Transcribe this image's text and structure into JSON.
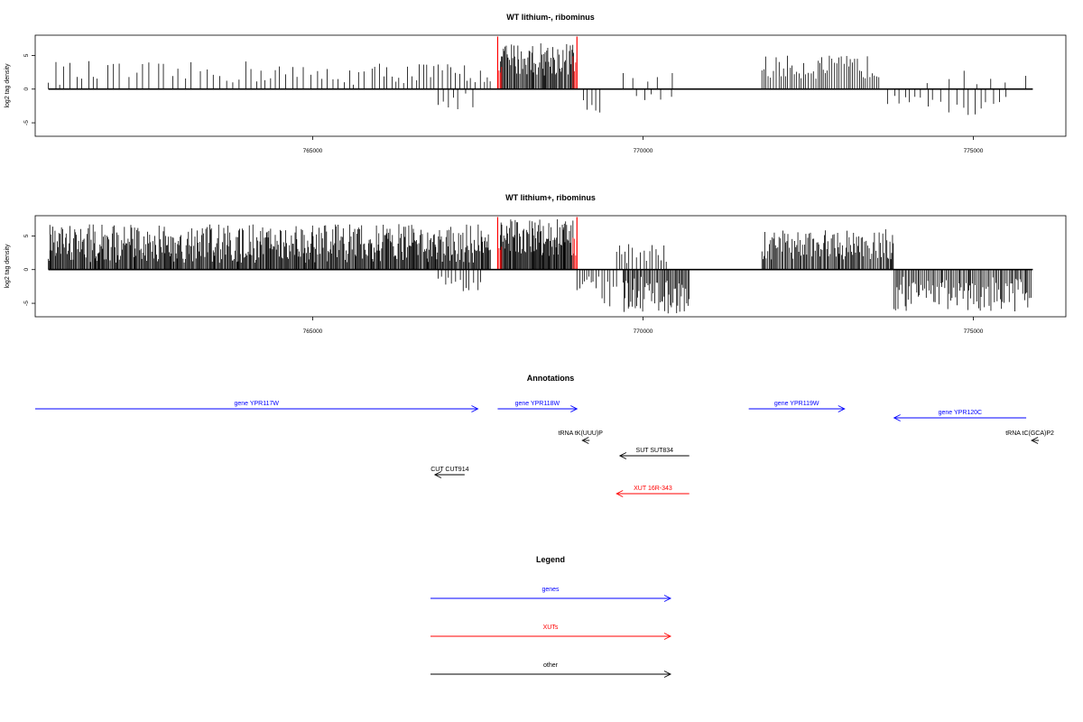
{
  "chart_data": [
    {
      "type": "bar",
      "title": "WT lithium-, ribominus",
      "ylabel": "log2 tag density",
      "xlim": [
        760800,
        776400
      ],
      "ylim": [
        -7,
        8
      ],
      "x_ticks": [
        765000,
        770000,
        775000
      ],
      "y_ticks": [
        -5,
        0,
        5
      ],
      "grid": false,
      "colors": {
        "bars": "#000000",
        "highlight": "#ff0000"
      },
      "highlight_x": [
        767800,
        769000
      ],
      "segments": [
        {
          "from": 761000,
          "to": 761800,
          "spacing": 90,
          "min": 0.6,
          "max": 4.2,
          "sign": 1
        },
        {
          "from": 761900,
          "to": 763200,
          "spacing": 110,
          "min": 0.8,
          "max": 4.0,
          "sign": 1
        },
        {
          "from": 763300,
          "to": 764600,
          "spacing": 90,
          "min": 0.8,
          "max": 4.3,
          "sign": 1
        },
        {
          "from": 764700,
          "to": 765800,
          "spacing": 85,
          "min": 0.6,
          "max": 3.6,
          "sign": 1
        },
        {
          "from": 765900,
          "to": 767700,
          "spacing": 60,
          "min": 0.8,
          "max": 4.0,
          "sign": 1
        },
        {
          "from": 766900,
          "to": 767500,
          "spacing": 90,
          "min": 0.6,
          "max": 3.0,
          "sign": -1
        },
        {
          "from": 767840,
          "to": 768960,
          "spacing": 16,
          "min": 2.0,
          "max": 7.0,
          "sign": 1
        },
        {
          "from": 769100,
          "to": 769350,
          "spacing": 60,
          "min": 1.5,
          "max": 3.6,
          "sign": -1
        },
        {
          "from": 769700,
          "to": 770500,
          "spacing": 200,
          "min": 0.8,
          "max": 2.6,
          "sign": 1
        },
        {
          "from": 769900,
          "to": 770500,
          "spacing": 150,
          "min": 0.5,
          "max": 2.2,
          "sign": -1
        },
        {
          "from": 771800,
          "to": 773600,
          "spacing": 35,
          "min": 1.5,
          "max": 5.0,
          "sign": 1
        },
        {
          "from": 773700,
          "to": 775500,
          "spacing": 90,
          "min": 1.0,
          "max": 3.9,
          "sign": -1
        },
        {
          "from": 774300,
          "to": 775800,
          "spacing": 250,
          "min": 0.5,
          "max": 2.8,
          "sign": 1
        }
      ]
    },
    {
      "type": "bar",
      "title": "WT lithium+, ribominus",
      "ylabel": "log2 tag density",
      "xlim": [
        760800,
        776400
      ],
      "ylim": [
        -7,
        8
      ],
      "x_ticks": [
        765000,
        770000,
        775000
      ],
      "y_ticks": [
        -5,
        0,
        5
      ],
      "grid": false,
      "colors": {
        "bars": "#000000",
        "highlight": "#ff0000"
      },
      "highlight_x": [
        767800,
        769000
      ],
      "segments": [
        {
          "from": 761000,
          "to": 767700,
          "spacing": 14,
          "min": 1.0,
          "max": 6.8,
          "sign": 1
        },
        {
          "from": 766900,
          "to": 767600,
          "spacing": 60,
          "min": 0.6,
          "max": 3.2,
          "sign": -1
        },
        {
          "from": 767840,
          "to": 768960,
          "spacing": 12,
          "min": 2.0,
          "max": 7.5,
          "sign": 1
        },
        {
          "from": 769000,
          "to": 769600,
          "spacing": 40,
          "min": 1.0,
          "max": 5.8,
          "sign": -1
        },
        {
          "from": 769600,
          "to": 770400,
          "spacing": 45,
          "min": 0.8,
          "max": 3.8,
          "sign": 1
        },
        {
          "from": 769700,
          "to": 770700,
          "spacing": 18,
          "min": 1.0,
          "max": 6.5,
          "sign": -1
        },
        {
          "from": 771800,
          "to": 773800,
          "spacing": 18,
          "min": 1.5,
          "max": 6.0,
          "sign": 1
        },
        {
          "from": 773800,
          "to": 775900,
          "spacing": 22,
          "min": 1.0,
          "max": 6.2,
          "sign": -1
        }
      ]
    }
  ],
  "annotations": {
    "title": "Annotations",
    "features": [
      {
        "label": "gene YPR117W",
        "color": "#0000ff",
        "start": 760800,
        "end": 767500,
        "strand": "+",
        "row": 0
      },
      {
        "label": "gene YPR118W",
        "color": "#0000ff",
        "start": 767800,
        "end": 769000,
        "strand": "+",
        "row": 0
      },
      {
        "label": "gene YPR119W",
        "color": "#0000ff",
        "start": 771600,
        "end": 773050,
        "strand": "+",
        "row": 0
      },
      {
        "label": "gene YPR120C",
        "color": "#0000ff",
        "start": 773800,
        "end": 775800,
        "strand": "-",
        "row": 1
      },
      {
        "label": "tRNA tK(UUU)P",
        "color": "#000000",
        "start": 769000,
        "end": 769100,
        "strand": "-",
        "row": 2
      },
      {
        "label": "tRNA tC(GCA)P2",
        "color": "#000000",
        "start": 775800,
        "end": 775900,
        "strand": "-",
        "row": 2
      },
      {
        "label": "SUT SUT834",
        "color": "#000000",
        "start": 769650,
        "end": 770700,
        "strand": "-",
        "row": 3
      },
      {
        "label": "CUT CUT914",
        "color": "#000000",
        "start": 766850,
        "end": 767300,
        "strand": "-",
        "row": 4
      },
      {
        "label": "XUT 16R-343",
        "color": "#ff0000",
        "start": 769600,
        "end": 770700,
        "strand": "-",
        "row": 5
      }
    ]
  },
  "legend": {
    "title": "Legend",
    "items": [
      {
        "label": "genes",
        "color": "#0000ff"
      },
      {
        "label": "XUTs",
        "color": "#ff0000"
      },
      {
        "label": "other",
        "color": "#000000"
      }
    ]
  }
}
